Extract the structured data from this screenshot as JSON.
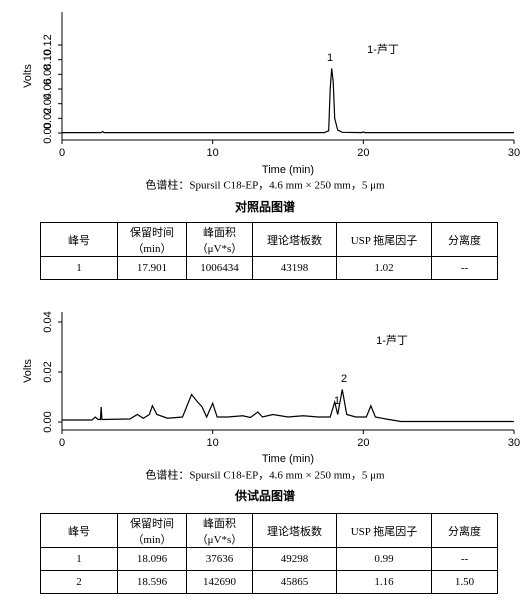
{
  "chart_data": [
    {
      "type": "line",
      "x_label": "Time (min)",
      "y_label": "Volts",
      "xlim": [
        0,
        30
      ],
      "xticks": [
        0,
        10,
        20,
        30
      ],
      "ylim": [
        -0.0095,
        0.165
      ],
      "yticks": [
        {
          "value": 0,
          "label": "0.00"
        },
        {
          "value": 0.02,
          "label": "0.02"
        },
        {
          "value": 0.04,
          "label": "0.04"
        },
        {
          "value": 0.06,
          "label": "0.06"
        },
        {
          "value": 0.08,
          "label": "0.08"
        },
        {
          "value": 0.1,
          "label": "0.10"
        },
        {
          "value": 0.12,
          "label": "0.12"
        }
      ],
      "x": [
        0,
        2.6,
        2.7,
        2.8,
        17.4,
        17.7,
        17.8,
        17.9,
        18.0,
        18.1,
        18.3,
        18.6,
        19.9,
        20.0,
        20.1,
        30
      ],
      "values": [
        0.0005,
        0.0005,
        0.002,
        0.0005,
        0.0005,
        0.003,
        0.06,
        0.088,
        0.07,
        0.02,
        0.004,
        0.001,
        0.0005,
        0.0015,
        0.0005,
        0.0005
      ],
      "color": "#000000",
      "annotations": [
        "1",
        "1-芦丁"
      ],
      "caption": "色谱柱：Spursil C18-EP，4.6 mm × 250 mm，5 μm",
      "title": "对照品图谱"
    },
    {
      "type": "line",
      "x_label": "Time (min)",
      "y_label": "Volts",
      "xlim": [
        0,
        30
      ],
      "xticks": [
        0,
        10,
        20,
        30
      ],
      "ylim": [
        -0.0032,
        0.044
      ],
      "yticks": [
        {
          "value": 0,
          "label": "0.00"
        },
        {
          "value": 0.02,
          "label": "0.02"
        },
        {
          "value": 0.04,
          "label": "0.04"
        }
      ],
      "x": [
        0,
        2.0,
        2.2,
        2.4,
        2.55,
        2.6,
        2.65,
        4.5,
        5.0,
        5.4,
        5.8,
        6.0,
        6.3,
        7,
        8,
        8.6,
        9.0,
        9.3,
        9.6,
        10,
        10.3,
        11,
        12,
        12.5,
        13,
        13.3,
        14,
        15,
        16,
        17,
        17.8,
        18.1,
        18.3,
        18.6,
        18.9,
        19.5,
        20.2,
        20.5,
        20.8,
        21.5,
        22.5,
        30
      ],
      "values": [
        0.0008,
        0.0008,
        0.002,
        0.001,
        0.001,
        0.006,
        0.001,
        0.0012,
        0.003,
        0.0015,
        0.003,
        0.0065,
        0.003,
        0.0015,
        0.002,
        0.011,
        0.008,
        0.006,
        0.002,
        0.0075,
        0.002,
        0.002,
        0.0025,
        0.0018,
        0.004,
        0.002,
        0.003,
        0.002,
        0.0025,
        0.002,
        0.002,
        0.008,
        0.003,
        0.013,
        0.003,
        0.002,
        0.002,
        0.0065,
        0.002,
        0.0012,
        0.0002,
        0.0002
      ],
      "color": "#000000",
      "annotations": [
        "1",
        "2",
        "1-芦丁"
      ],
      "caption": "色谱柱：Spursil C18-EP，4.6 mm × 250 mm，5 μm",
      "title": "供试品图谱"
    }
  ],
  "tables": [
    {
      "header": [
        "峰号",
        "保留时间\n（min）",
        "峰面积\n（μV*s）",
        "理论塔板数",
        "USP 拖尾因子",
        "分离度"
      ],
      "rows": [
        [
          "1",
          "17.901",
          "1006434",
          "43198",
          "1.02",
          "--"
        ]
      ]
    },
    {
      "header": [
        "峰号",
        "保留时间\n（min）",
        "峰面积\n（μV*s）",
        "理论塔板数",
        "USP 拖尾因子",
        "分离度"
      ],
      "rows": [
        [
          "1",
          "18.096",
          "37636",
          "49298",
          "0.99",
          "--"
        ],
        [
          "2",
          "18.596",
          "142690",
          "45865",
          "1.16",
          "1.50"
        ]
      ]
    }
  ]
}
